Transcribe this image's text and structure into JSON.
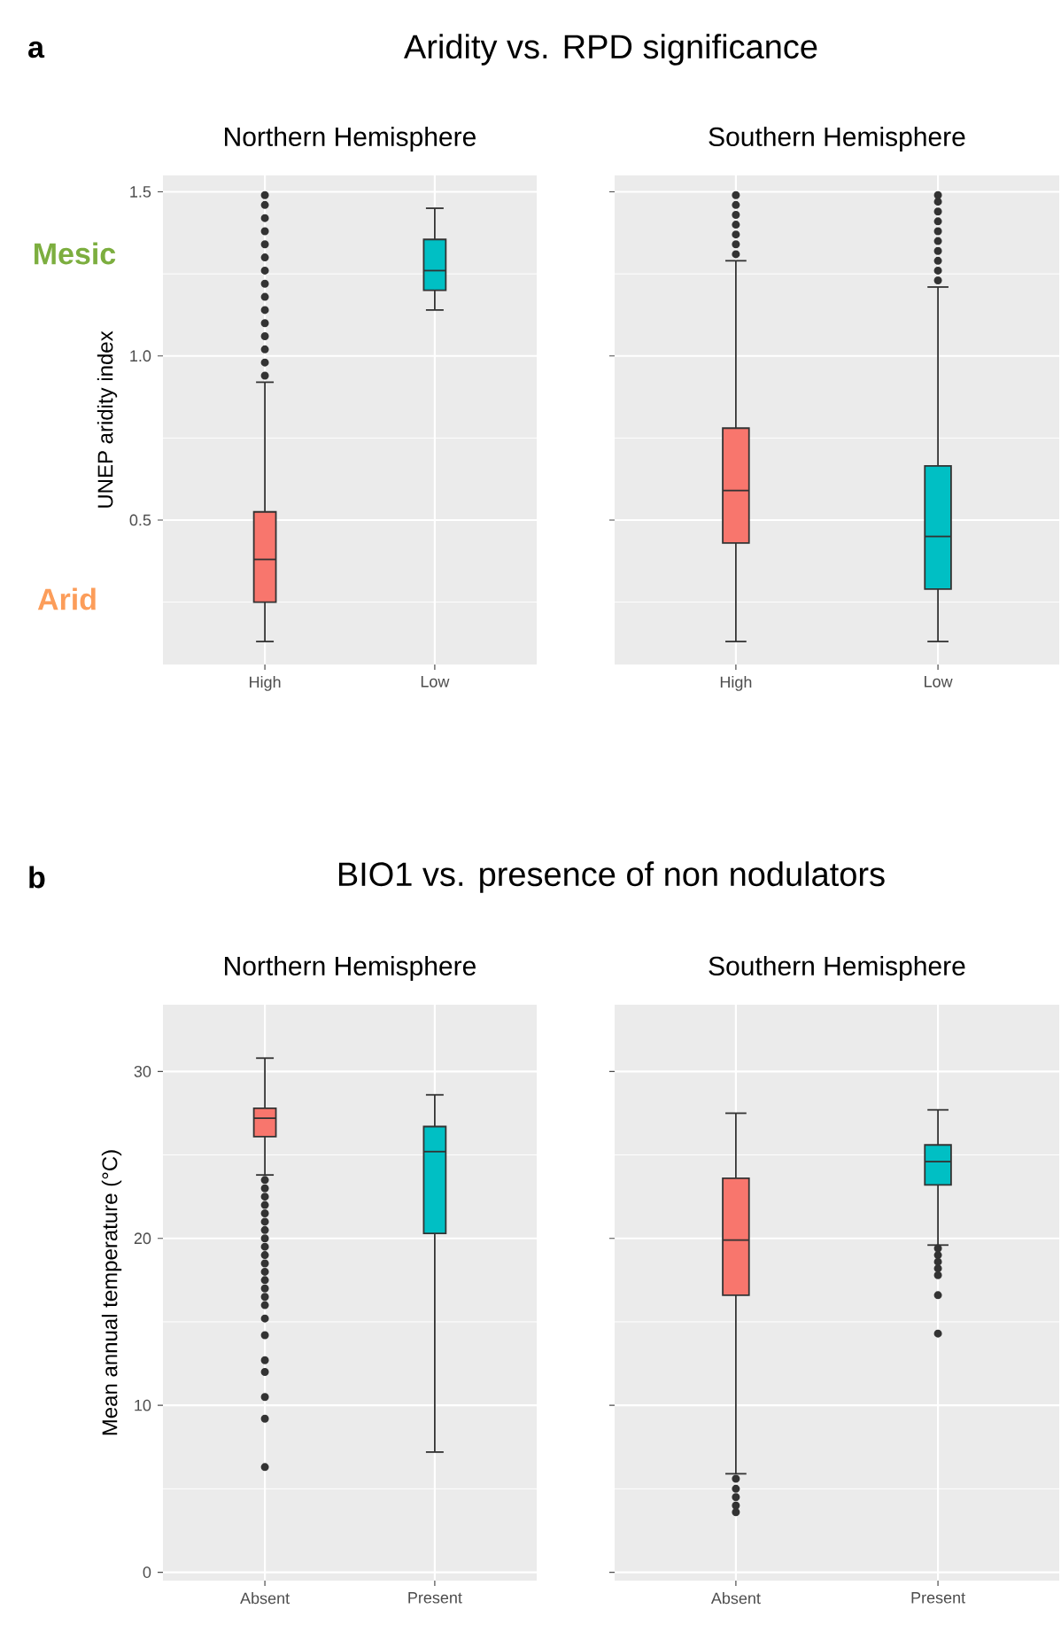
{
  "chart_data": [
    {
      "type": "box",
      "title": "Northern Hemisphere",
      "ylabel": "UNEP aridity index",
      "categories": [
        "High",
        "Low"
      ],
      "colors": [
        "#f8766d",
        "#00bfc4"
      ],
      "ylim": [
        0.06,
        1.55
      ],
      "yticks": [
        0.5,
        {
          "value": 1,
          "label": "1.0"
        },
        1.5
      ],
      "grid": true,
      "annotations": [
        "a",
        "Aridity vs. RPD significance",
        "Mesic",
        "Arid"
      ],
      "boxes": [
        {
          "low": 0.13,
          "q1": 0.25,
          "median": 0.38,
          "q3": 0.525,
          "high": 0.92,
          "outliers": [
            0.94,
            0.98,
            1.02,
            1.06,
            1.1,
            1.14,
            1.18,
            1.22,
            1.26,
            1.3,
            1.34,
            1.38,
            1.42,
            1.46,
            1.49
          ]
        },
        {
          "low": 1.14,
          "q1": 1.2,
          "median": 1.26,
          "q3": 1.355,
          "high": 1.45
        }
      ]
    },
    {
      "type": "box",
      "title": "Southern Hemisphere",
      "categories": [
        "High",
        "Low"
      ],
      "colors": [
        "#f8766d",
        "#00bfc4"
      ],
      "ylim": [
        0.06,
        1.55
      ],
      "yticks": [
        0.5,
        1,
        1.5
      ],
      "grid": true,
      "tick_labels": "x",
      "boxes": [
        {
          "low": 0.13,
          "q1": 0.43,
          "median": 0.59,
          "q3": 0.78,
          "high": 1.29,
          "outliers": [
            1.31,
            1.34,
            1.37,
            1.4,
            1.43,
            1.46,
            1.49
          ]
        },
        {
          "low": 0.13,
          "q1": 0.29,
          "median": 0.45,
          "q3": 0.665,
          "high": 1.21,
          "outliers": [
            1.23,
            1.26,
            1.29,
            1.32,
            1.35,
            1.38,
            1.41,
            1.44,
            1.47,
            1.49
          ]
        }
      ]
    },
    {
      "type": "box",
      "title": "Northern Hemisphere",
      "ylabel": "Mean annual temperature (°C)",
      "categories": [
        "Absent",
        "Present"
      ],
      "colors": [
        "#f8766d",
        "#00bfc4"
      ],
      "ylim": [
        -0.5,
        34
      ],
      "yticks": [
        0,
        10,
        20,
        30
      ],
      "grid": true,
      "annotations": [
        "b",
        "BIO1 vs. presence of non nodulators"
      ],
      "boxes": [
        {
          "low": 23.8,
          "q1": 26.1,
          "median": 27.2,
          "q3": 27.8,
          "high": 30.8,
          "outliers": [
            23.5,
            23,
            22.5,
            22,
            21.5,
            21,
            20.5,
            20,
            19.5,
            19,
            18.5,
            18,
            17.5,
            17,
            16.5,
            16,
            15.2,
            14.2,
            12.7,
            12,
            10.5,
            9.2,
            6.3
          ]
        },
        {
          "low": 7.2,
          "q1": 20.3,
          "median": 25.2,
          "q3": 26.7,
          "high": 28.6
        }
      ]
    },
    {
      "type": "box",
      "title": "Southern Hemisphere",
      "categories": [
        "Absent",
        "Present"
      ],
      "colors": [
        "#f8766d",
        "#00bfc4"
      ],
      "ylim": [
        -0.5,
        34
      ],
      "yticks": [
        0,
        10,
        20,
        30
      ],
      "grid": true,
      "tick_labels": "x",
      "boxes": [
        {
          "low": 5.9,
          "q1": 16.6,
          "median": 19.9,
          "q3": 23.6,
          "high": 27.5,
          "outliers": [
            5.6,
            5,
            4.5,
            4,
            3.6
          ]
        },
        {
          "low": 19.6,
          "q1": 23.2,
          "median": 24.6,
          "q3": 25.6,
          "high": 27.7,
          "outliers": [
            19.4,
            19,
            18.6,
            18.2,
            17.8,
            16.6,
            14.3
          ]
        }
      ]
    }
  ]
}
